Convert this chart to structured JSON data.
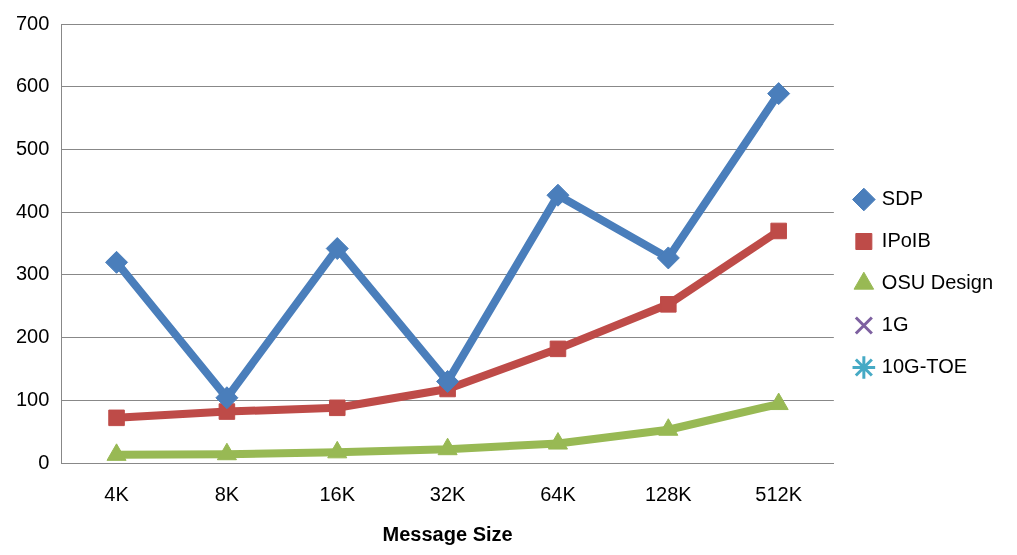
{
  "chart_data": {
    "type": "line",
    "xlabel": "Message Size",
    "categories": [
      "4K",
      "8K",
      "16K",
      "32K",
      "64K",
      "128K",
      "512K"
    ],
    "series": [
      {
        "name": "SDP",
        "color": "#4a7ebb",
        "marker": "diamond",
        "values": [
          320,
          104,
          342,
          130,
          427,
          327,
          589
        ]
      },
      {
        "name": "IPoIB",
        "color": "#be4b48",
        "marker": "square",
        "values": [
          72,
          82,
          88,
          118,
          182,
          253,
          370
        ]
      },
      {
        "name": "OSU Design",
        "color": "#98b954",
        "marker": "triangle",
        "values": [
          13,
          14,
          17,
          22,
          31,
          53,
          94
        ]
      },
      {
        "name": "1G",
        "color": "#7d60a0",
        "marker": "cross",
        "values": [
          null,
          null,
          null,
          null,
          null,
          null,
          null
        ]
      },
      {
        "name": "10G-TOE",
        "color": "#46aac5",
        "marker": "star",
        "values": [
          null,
          null,
          null,
          null,
          null,
          null,
          null
        ]
      }
    ],
    "ylim": [
      0,
      700
    ],
    "yticks": [
      0,
      100,
      200,
      300,
      400,
      500,
      600,
      700
    ],
    "grid": "y",
    "legend": "right",
    "line_style": "solid"
  }
}
